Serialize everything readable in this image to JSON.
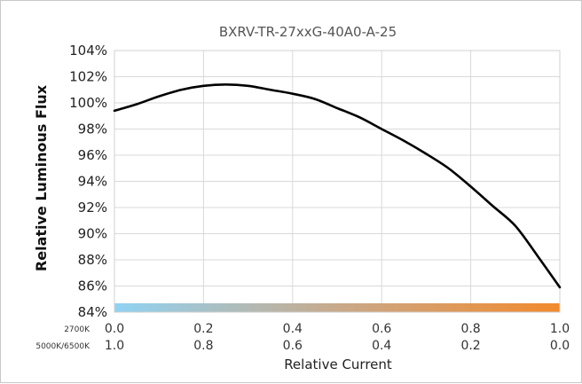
{
  "chart_data": {
    "type": "line",
    "title": "BXRV-TR-27xxG-40A0-A-25",
    "xlabel": "Relative Current",
    "ylabel": "Relative Luminous Flux",
    "xlim": [
      0,
      1
    ],
    "ylim": [
      84,
      104
    ],
    "y_ticks": [
      "84%",
      "86%",
      "88%",
      "90%",
      "92%",
      "94%",
      "96%",
      "98%",
      "100%",
      "102%",
      "104%"
    ],
    "x_ticks_row1_label": "2700K",
    "x_ticks_row1": [
      "0.0",
      "0.2",
      "0.4",
      "0.6",
      "0.8",
      "1.0"
    ],
    "x_ticks_row2_label": "5000K/6500K",
    "x_ticks_row2": [
      "1.0",
      "0.8",
      "0.6",
      "0.4",
      "0.2",
      "0.0"
    ],
    "grid": true,
    "gradient_bar_colors": [
      "#8fd3f4",
      "#c8a98a",
      "#f28a2e"
    ],
    "series": [
      {
        "color": "#000000",
        "x": [
          0.0,
          0.05,
          0.1,
          0.15,
          0.2,
          0.25,
          0.3,
          0.35,
          0.4,
          0.45,
          0.5,
          0.55,
          0.6,
          0.65,
          0.7,
          0.75,
          0.8,
          0.85,
          0.9,
          0.95,
          1.0
        ],
        "y": [
          99.4,
          99.9,
          100.5,
          101.0,
          101.3,
          101.4,
          101.3,
          101.0,
          100.7,
          100.3,
          99.6,
          98.9,
          98.0,
          97.1,
          96.1,
          95.0,
          93.6,
          92.1,
          90.6,
          88.3,
          85.9
        ]
      }
    ]
  }
}
